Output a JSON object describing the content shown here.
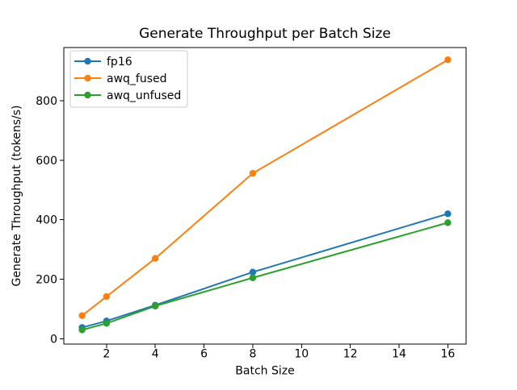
{
  "figure": {
    "background": "#ffffff",
    "axes_edge_color": "#000000",
    "legend_border_color": "#cccccc",
    "legend_background": "#ffffff"
  },
  "chart_data": {
    "type": "line",
    "title": "Generate Throughput per Batch Size",
    "xlabel": "Batch Size",
    "ylabel": "Generate Throughput (tokens/s)",
    "x": [
      1,
      2,
      4,
      8,
      16
    ],
    "series": [
      {
        "name": "fp16",
        "color": "#1f77b4",
        "values": [
          38,
          60,
          113,
          224,
          420
        ]
      },
      {
        "name": "awq_fused",
        "color": "#ff7f0e",
        "values": [
          78,
          142,
          270,
          556,
          937
        ]
      },
      {
        "name": "awq_unfused",
        "color": "#2ca02c",
        "values": [
          30,
          52,
          110,
          205,
          390
        ]
      }
    ],
    "x_ticks": [
      2,
      4,
      6,
      8,
      10,
      12,
      14,
      16
    ],
    "y_ticks": [
      0,
      200,
      400,
      600,
      800
    ],
    "xlim": [
      0.25,
      16.75
    ],
    "ylim": [
      -17.6,
      978.2
    ],
    "grid": false,
    "legend_position": "upper left",
    "marker": "o"
  }
}
